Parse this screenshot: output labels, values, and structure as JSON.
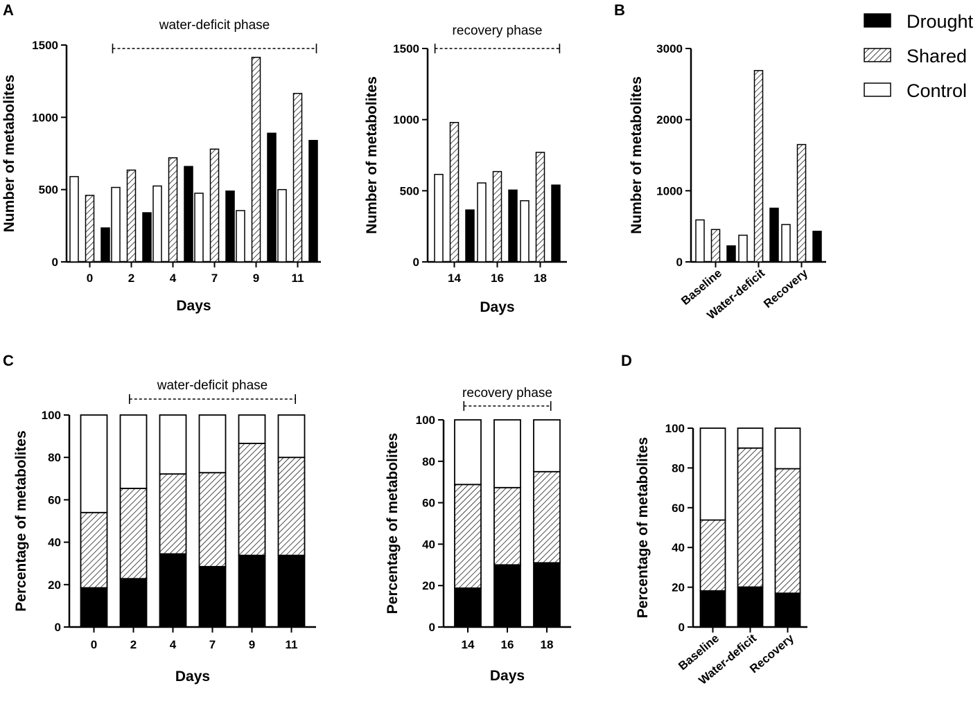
{
  "colors": {
    "drought": "#000000",
    "shared_hatch": "#000000",
    "control": "#ffffff",
    "axis": "#000000"
  },
  "panel_labels": {
    "a": "A",
    "b": "B",
    "c": "C",
    "d": "D"
  },
  "legend": {
    "items": [
      {
        "key": "drought",
        "label": "Drought"
      },
      {
        "key": "shared",
        "label": "Shared"
      },
      {
        "key": "control",
        "label": "Control"
      }
    ]
  },
  "chart_data": [
    {
      "id": "A1",
      "type": "bar",
      "panel": "A",
      "phase_label": "water-deficit phase",
      "phase_span": [
        "2",
        "11"
      ],
      "categories": [
        "0",
        "2",
        "4",
        "7",
        "9",
        "11"
      ],
      "series": [
        {
          "name": "Control",
          "values": [
            590,
            515,
            525,
            475,
            355,
            500
          ]
        },
        {
          "name": "Shared",
          "values": [
            460,
            635,
            720,
            780,
            1415,
            1165
          ]
        },
        {
          "name": "Drought",
          "values": [
            235,
            340,
            660,
            490,
            890,
            840
          ]
        }
      ],
      "xlabel": "Days",
      "ylabel": "Number of metabolites",
      "ylim": [
        0,
        1500
      ],
      "yticks": [
        0,
        500,
        1000,
        1500
      ]
    },
    {
      "id": "A2",
      "type": "bar",
      "panel": "A",
      "phase_label": "recovery phase",
      "phase_span": [
        "14",
        "18"
      ],
      "categories": [
        "14",
        "16",
        "18"
      ],
      "series": [
        {
          "name": "Control",
          "values": [
            615,
            555,
            430
          ]
        },
        {
          "name": "Shared",
          "values": [
            980,
            635,
            770
          ]
        },
        {
          "name": "Drought",
          "values": [
            365,
            505,
            540
          ]
        }
      ],
      "xlabel": "Days",
      "ylabel": "Number of metabolites",
      "ylim": [
        0,
        1500
      ],
      "yticks": [
        0,
        500,
        1000,
        1500
      ]
    },
    {
      "id": "B",
      "type": "bar",
      "panel": "B",
      "categories": [
        "Baseline",
        "Water-deficit",
        "Recovery"
      ],
      "series": [
        {
          "name": "Control",
          "values": [
            590,
            375,
            525
          ]
        },
        {
          "name": "Shared",
          "values": [
            455,
            2690,
            1650
          ]
        },
        {
          "name": "Drought",
          "values": [
            225,
            755,
            430
          ]
        }
      ],
      "xlabel": "",
      "ylabel": "Number of metabolites",
      "ylim": [
        0,
        3000
      ],
      "yticks": [
        0,
        1000,
        2000,
        3000
      ]
    },
    {
      "id": "C1",
      "type": "bar",
      "stacked": true,
      "panel": "C",
      "phase_label": "water-deficit phase",
      "phase_span": [
        "2",
        "11"
      ],
      "categories": [
        "0",
        "2",
        "4",
        "7",
        "9",
        "11"
      ],
      "series": [
        {
          "name": "Drought",
          "values": [
            18.5,
            22.8,
            34.5,
            28.5,
            33.8,
            33.8
          ]
        },
        {
          "name": "Shared",
          "values": [
            35.5,
            42.6,
            37.7,
            44.3,
            52.8,
            46.2
          ]
        },
        {
          "name": "Control",
          "values": [
            46.0,
            34.6,
            27.8,
            27.2,
            13.4,
            20.0
          ]
        }
      ],
      "xlabel": "Days",
      "ylabel": "Percentage of metabolites",
      "ylim": [
        0,
        100
      ],
      "yticks": [
        0,
        20,
        40,
        60,
        80,
        100
      ]
    },
    {
      "id": "C2",
      "type": "bar",
      "stacked": true,
      "panel": "C",
      "phase_label": "recovery phase",
      "phase_span": [
        "14",
        "18"
      ],
      "categories": [
        "14",
        "16",
        "18"
      ],
      "series": [
        {
          "name": "Drought",
          "values": [
            18.8,
            30.0,
            31.0
          ]
        },
        {
          "name": "Shared",
          "values": [
            50.0,
            37.3,
            44.0
          ]
        },
        {
          "name": "Control",
          "values": [
            31.2,
            32.7,
            25.0
          ]
        }
      ],
      "xlabel": "Days",
      "ylabel": "Percentage of metabolites",
      "ylim": [
        0,
        100
      ],
      "yticks": [
        0,
        20,
        40,
        60,
        80,
        100
      ]
    },
    {
      "id": "D",
      "type": "bar",
      "stacked": true,
      "panel": "D",
      "categories": [
        "Baseline",
        "Water-deficit",
        "Recovery"
      ],
      "series": [
        {
          "name": "Drought",
          "values": [
            18.2,
            20.1,
            17.0
          ]
        },
        {
          "name": "Shared",
          "values": [
            35.6,
            69.9,
            62.6
          ]
        },
        {
          "name": "Control",
          "values": [
            46.2,
            10.0,
            20.4
          ]
        }
      ],
      "xlabel": "",
      "ylabel": "Percentage of metabolites",
      "ylim": [
        0,
        100
      ],
      "yticks": [
        0,
        20,
        40,
        60,
        80,
        100
      ]
    }
  ]
}
